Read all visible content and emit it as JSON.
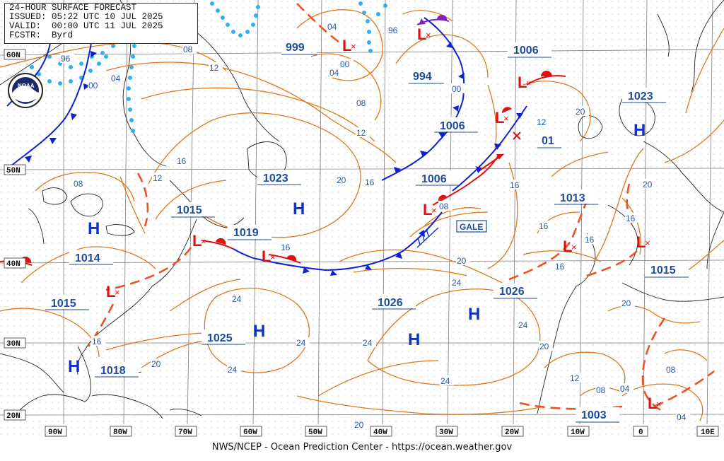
{
  "header": {
    "line1": "24-HOUR SURFACE FORECAST",
    "line2": "ISSUED: 05:22 UTC 10 JUL 2025",
    "line3": "VALID:  00:00 UTC 11 JUL 2025",
    "line4": "FCSTR:  Byrd"
  },
  "footer": "NWS/NCEP - Ocean Prediction Center - https://ocean.weather.gov",
  "logo": {
    "icon": "noaa-logo",
    "text": "NOAA"
  },
  "lat_labels": [
    "60N",
    "50N",
    "40N",
    "30N",
    "20N"
  ],
  "lon_labels": [
    "90W",
    "80W",
    "70W",
    "60W",
    "50W",
    "40W",
    "30W",
    "20W",
    "10W",
    "0",
    "10E"
  ],
  "gale_label": "GALE",
  "pressure_centers": [
    {
      "kind": "H",
      "label": "1014"
    },
    {
      "kind": "H",
      "label": "1018"
    },
    {
      "kind": "H",
      "label": "1023"
    },
    {
      "kind": "H",
      "label": "1025"
    },
    {
      "kind": "H",
      "label": "1026"
    },
    {
      "kind": "H",
      "label": "1023"
    },
    {
      "kind": "L",
      "label": "1015"
    },
    {
      "kind": "L",
      "label": "1015"
    },
    {
      "kind": "L",
      "label": "1019"
    },
    {
      "kind": "L",
      "label": "999"
    },
    {
      "kind": "L",
      "label": "994"
    },
    {
      "kind": "L",
      "label": "1006"
    },
    {
      "kind": "L",
      "label": "1006"
    },
    {
      "kind": "L",
      "label": "1006"
    },
    {
      "kind": "L",
      "label": "1013"
    },
    {
      "kind": "L",
      "label": "1015"
    },
    {
      "kind": "L",
      "label": "1003"
    },
    {
      "kind": "value",
      "label": "1026"
    },
    {
      "kind": "value",
      "label": "01"
    }
  ],
  "contour_labels": [
    "96",
    "00",
    "04",
    "08",
    "04",
    "00",
    "96",
    "00",
    "04",
    "08",
    "12",
    "12",
    "16",
    "08",
    "12",
    "16",
    "20",
    "16",
    "08",
    "20",
    "12",
    "20",
    "16",
    "16",
    "20",
    "16",
    "16",
    "16",
    "24",
    "24",
    "24",
    "24",
    "24",
    "20",
    "24",
    "20",
    "20",
    "16",
    "12",
    "08",
    "04",
    "08",
    "04",
    "20",
    "24"
  ],
  "colors": {
    "isobar": "#e07818",
    "cold_front": "#1020d0",
    "warm_front": "#e01010",
    "occluded": "#8020c0",
    "ice": "#30b0f0",
    "land": "#222222",
    "grid": "#777777",
    "label": "#2a57a8"
  }
}
